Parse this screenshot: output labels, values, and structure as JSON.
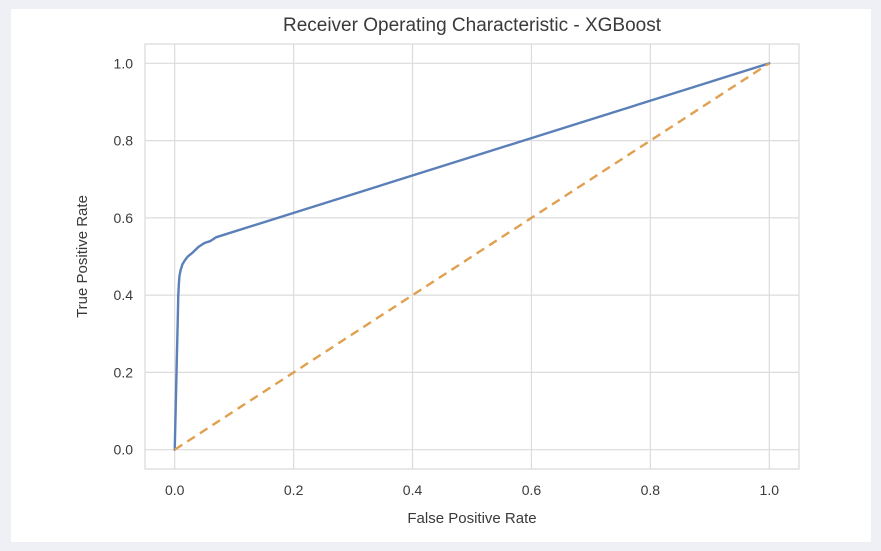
{
  "chart_data": {
    "type": "line",
    "title": "Receiver Operating Characteristic - XGBoost",
    "xlabel": "False Positive Rate",
    "ylabel": "True Positive Rate",
    "xlim": [
      -0.05,
      1.05
    ],
    "ylim": [
      -0.05,
      1.05
    ],
    "xticks": [
      0.0,
      0.2,
      0.4,
      0.6,
      0.8,
      1.0
    ],
    "yticks": [
      0.0,
      0.2,
      0.4,
      0.6,
      0.8,
      1.0
    ],
    "xtick_labels": [
      "0.0",
      "0.2",
      "0.4",
      "0.6",
      "0.8",
      "1.0"
    ],
    "ytick_labels": [
      "0.0",
      "0.2",
      "0.4",
      "0.6",
      "0.8",
      "1.0"
    ],
    "grid": true,
    "series": [
      {
        "color": "#5b7fb8",
        "style": "solid",
        "x": [
          0.0,
          0.003,
          0.005,
          0.006,
          0.007,
          0.008,
          0.01,
          0.013,
          0.017,
          0.022,
          0.03,
          0.04,
          0.05,
          0.06,
          0.07,
          1.0
        ],
        "y": [
          0.0,
          0.2,
          0.33,
          0.4,
          0.43,
          0.45,
          0.465,
          0.48,
          0.49,
          0.5,
          0.51,
          0.525,
          0.535,
          0.54,
          0.55,
          1.0
        ]
      },
      {
        "color": "#e0a050",
        "style": "dashed",
        "x": [
          0.0,
          1.0
        ],
        "y": [
          0.0,
          1.0
        ]
      }
    ]
  }
}
